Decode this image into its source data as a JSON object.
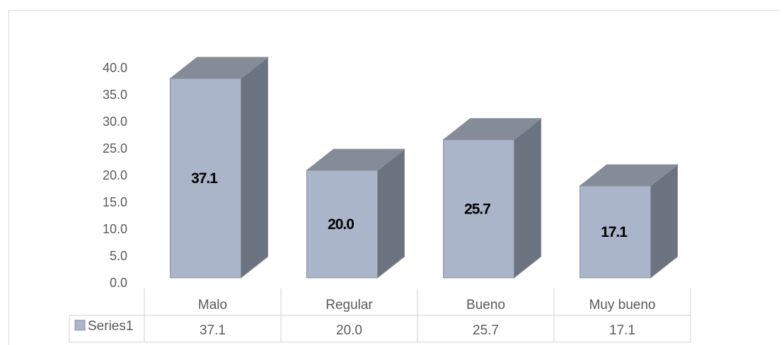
{
  "chart_data": {
    "type": "bar",
    "style": "3d-column-with-data-table",
    "categories": [
      "Malo",
      "Regular",
      "Bueno",
      "Muy bueno"
    ],
    "series": [
      {
        "name": "Series1",
        "values": [
          37.1,
          20.0,
          25.7,
          17.1
        ],
        "labels": [
          "37.1",
          "20.0",
          "25.7",
          "17.1"
        ]
      }
    ],
    "yticks": [
      "0.0",
      "5.0",
      "10.0",
      "15.0",
      "20.0",
      "25.0",
      "30.0",
      "35.0",
      "40.0"
    ],
    "ylim": [
      0,
      40
    ],
    "title": "",
    "xlabel": "",
    "ylabel": "",
    "grid": false,
    "legend": "data-table",
    "colors": {
      "front": "#aab5ca",
      "side": "#6b7380",
      "top": "#858c98",
      "edge": "#8a9099",
      "table_line": "#d0d0d0",
      "legend_key": "#aab5ca"
    }
  }
}
